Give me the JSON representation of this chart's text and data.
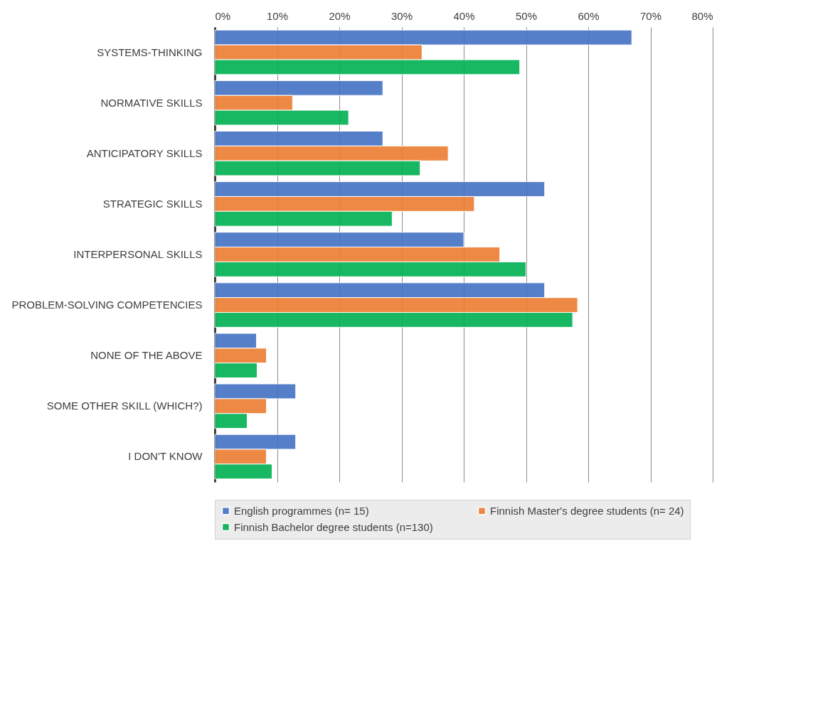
{
  "chart_data": {
    "type": "bar",
    "orientation": "horizontal",
    "categories": [
      "SYSTEMS-THINKING",
      "NORMATIVE SKILLS",
      "ANTICIPATORY SKILLS",
      "STRATEGIC SKILLS",
      "INTERPERSONAL SKILLS",
      "PROBLEM-SOLVING COMPETENCIES",
      "NONE OF THE ABOVE",
      "SOME OTHER SKILL (WHICH?)",
      "I DON'T KNOW"
    ],
    "series": [
      {
        "name": "English programmes (n= 15)",
        "color": "#4472c4",
        "values": [
          67,
          27,
          27,
          53,
          40,
          53,
          6.7,
          13,
          13
        ]
      },
      {
        "name": "Finnish Master's degree students (n= 24)",
        "color": "#ed7d31",
        "values": [
          33.3,
          12.5,
          37.5,
          41.7,
          45.8,
          58.3,
          8.3,
          8.3,
          8.3
        ]
      },
      {
        "name": "Finnish Bachelor degree students (n=130)",
        "color": "#00b050",
        "values": [
          49,
          21.5,
          33,
          28.5,
          50,
          57.5,
          6.8,
          5.2,
          9.2
        ]
      }
    ],
    "xlim": [
      0,
      80
    ],
    "xticks": [
      {
        "value": 0,
        "label": "0%"
      },
      {
        "value": 10,
        "label": "10%"
      },
      {
        "value": 20,
        "label": "20%"
      },
      {
        "value": 30,
        "label": "30%"
      },
      {
        "value": 40,
        "label": "40%"
      },
      {
        "value": 50,
        "label": "50%"
      },
      {
        "value": 60,
        "label": "60%"
      },
      {
        "value": 70,
        "label": "70%"
      },
      {
        "value": 80,
        "label": "80%"
      }
    ],
    "grid": "x",
    "legend": "bottom"
  }
}
